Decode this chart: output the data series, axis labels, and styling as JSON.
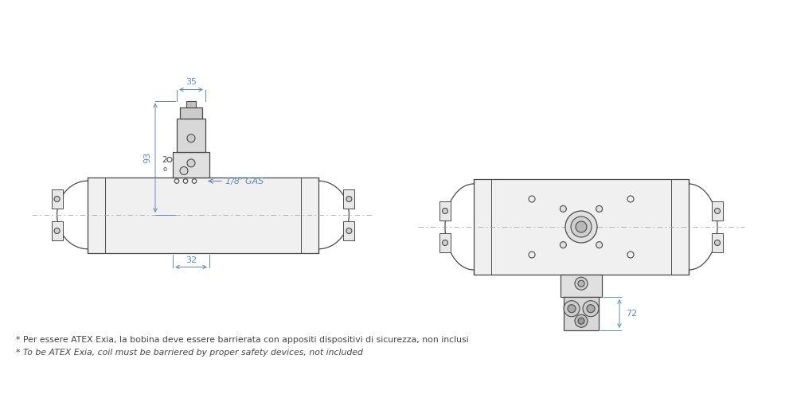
{
  "bg_color": "#ffffff",
  "line_color": "#4a4a4a",
  "dim_color": "#5b8abf",
  "note_color": "#444444",
  "note1": "* Per essere ATEX Exia, la bobina deve essere barrierata con appositi dispositivi di sicurezza, non inclusi",
  "note2": "* To be ATEX Exia, coil must be barriered by proper safety devices, not included",
  "dim_35": "35",
  "dim_93": "93",
  "dim_32": "32",
  "dim_72": "72",
  "label_gas": "1/8’ GAS"
}
